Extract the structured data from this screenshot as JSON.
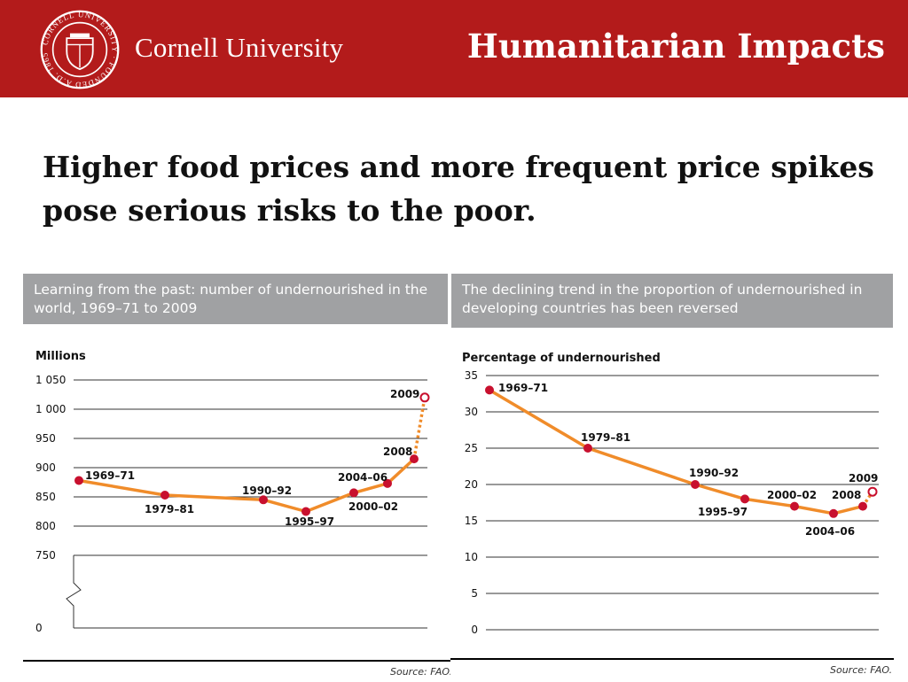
{
  "colors": {
    "brand": "#b31b1b",
    "panel": "#a0a1a3",
    "line": "#f08c2a",
    "marker": "#c8102e",
    "grid": "#333333"
  },
  "header": {
    "seal_text": "CORNELL UNIVERSITY · FOUNDED A.D. 1865",
    "university": "Cornell University",
    "slide_title": "Humanitarian Impacts"
  },
  "headline": "Higher food prices and more frequent price spikes pose serious risks to the poor.",
  "chart_data": [
    {
      "type": "line",
      "title": "Learning from the past: number of undernourished in the world, 1969–71 to 2009",
      "ylabel": "Millions",
      "y_ticks": [
        "1 050",
        "1 000",
        "950",
        "900",
        "850",
        "800",
        "750",
        "0"
      ],
      "y_tick_values": [
        1050,
        1000,
        950,
        900,
        850,
        800,
        750,
        0
      ],
      "axis_break": true,
      "grid": true,
      "x": [
        "1969–71",
        "1979–81",
        "1990–92",
        "1995–97",
        "2000–02",
        "2004–06",
        "2008",
        "2009"
      ],
      "values": [
        878,
        853,
        845,
        825,
        857,
        873,
        915,
        1020
      ],
      "data_labels": [
        "1969–71",
        "1979–81",
        "1990–92",
        "1995–97",
        "2000–02",
        "2004–06",
        "2008",
        "2009"
      ],
      "projected": "2009",
      "source": "Source: FAO."
    },
    {
      "type": "line",
      "title": "The declining trend in the proportion of undernourished in developing countries has been reversed",
      "ylabel": "Percentage of undernourished",
      "ylim": [
        0,
        35
      ],
      "y_ticks": [
        "35",
        "30",
        "25",
        "20",
        "15",
        "10",
        "5",
        "0"
      ],
      "y_tick_values": [
        35,
        30,
        25,
        20,
        15,
        10,
        5,
        0
      ],
      "grid": true,
      "x": [
        "1969–71",
        "1979–81",
        "1990–92",
        "1995–97",
        "2000–02",
        "2004–06",
        "2008",
        "2009"
      ],
      "values": [
        33,
        25,
        20,
        18,
        17,
        16,
        17,
        19
      ],
      "data_labels": [
        "1969–71",
        "1979–81",
        "1990–92",
        "1995–97",
        "2000–02",
        "2004–06",
        "2008",
        "2009"
      ],
      "projected": "2009",
      "source": "Source: FAO."
    }
  ]
}
